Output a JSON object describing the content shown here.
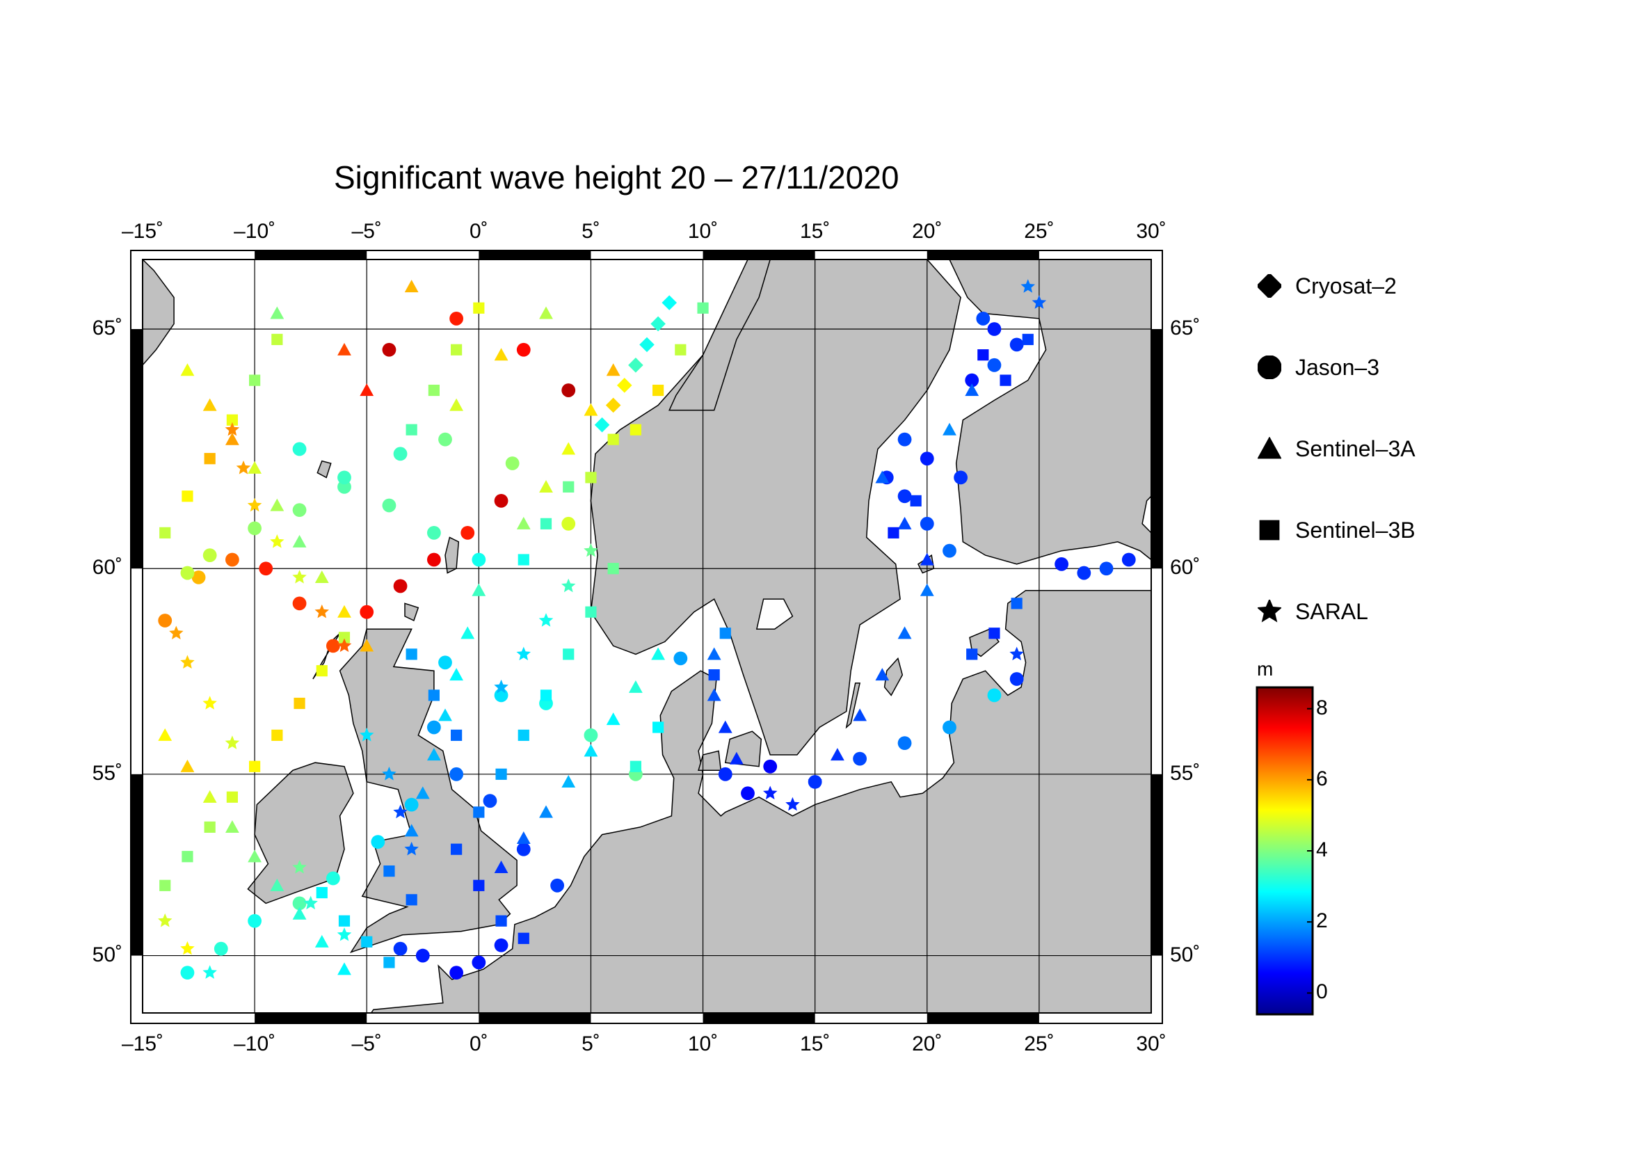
{
  "title": "Significant wave height 20 – 27/11/2020",
  "map": {
    "lon_range": [
      -15,
      30
    ],
    "lat_range": [
      48.3,
      66.3
    ],
    "lon_ticks": [
      "–15˚",
      "–10˚",
      "–5˚",
      "0˚",
      "5˚",
      "10˚",
      "15˚",
      "20˚",
      "25˚",
      "30˚"
    ],
    "lat_ticks": [
      "50˚",
      "55˚",
      "60˚",
      "65˚"
    ],
    "land_color": "#c0c0c0",
    "sea_color": "#ffffff",
    "grid": true
  },
  "legend": {
    "items": [
      {
        "label": "Cryosat–2",
        "icon": "diamond-icon"
      },
      {
        "label": "Jason–3",
        "icon": "circle-icon"
      },
      {
        "label": "Sentinel–3A",
        "icon": "triangle-icon"
      },
      {
        "label": "Sentinel–3B",
        "icon": "square-icon"
      },
      {
        "label": "SARAL",
        "icon": "star-icon"
      }
    ]
  },
  "colorbar": {
    "unit": "m",
    "min": -0.6,
    "max": 8.6,
    "ticks": [
      "0",
      "2",
      "4",
      "6",
      "8"
    ],
    "colors": [
      "#00008f",
      "#0000ff",
      "#0080ff",
      "#00ffff",
      "#80ff80",
      "#ffff00",
      "#ff8000",
      "#ff0000",
      "#800000"
    ]
  },
  "chart_data": {
    "type": "scatter",
    "title": "Significant wave height 20 – 27/11/2020",
    "x_unit": "longitude (degrees)",
    "y_unit": "latitude (degrees)",
    "value_unit": "m",
    "series": [
      {
        "name": "Cryosat–2",
        "marker": "diamond",
        "points": [
          [
            6.5,
            63.9,
            5.2
          ],
          [
            7.0,
            64.3,
            3.4
          ],
          [
            7.5,
            64.7,
            3.0
          ],
          [
            8.0,
            65.1,
            3.2
          ],
          [
            8.5,
            65.5,
            2.9
          ],
          [
            6.0,
            63.5,
            5.5
          ],
          [
            5.5,
            63.1,
            3.0
          ]
        ]
      },
      {
        "name": "Jason–3",
        "marker": "circle",
        "points": [
          [
            -14,
            58.8,
            6.2
          ],
          [
            -12.5,
            59.8,
            5.8
          ],
          [
            -11,
            60.2,
            6.5
          ],
          [
            -9.5,
            60.0,
            7.2
          ],
          [
            -8.0,
            59.2,
            7.0
          ],
          [
            -6.5,
            58.2,
            6.8
          ],
          [
            -5.0,
            59.0,
            7.3
          ],
          [
            -3.5,
            59.6,
            7.8
          ],
          [
            -2.0,
            60.2,
            7.6
          ],
          [
            -0.5,
            60.8,
            7.2
          ],
          [
            1.0,
            61.5,
            7.9
          ],
          [
            4.0,
            63.8,
            8.1
          ],
          [
            2.0,
            64.6,
            7.4
          ],
          [
            -1.0,
            65.2,
            7.2
          ],
          [
            -4.0,
            64.6,
            8.0
          ],
          [
            -13,
            59.9,
            4.6
          ],
          [
            -12,
            60.3,
            4.6
          ],
          [
            -10,
            60.9,
            4.2
          ],
          [
            -8,
            61.3,
            4.0
          ],
          [
            -6,
            61.8,
            3.6
          ],
          [
            -3.5,
            62.5,
            3.4
          ],
          [
            -1.5,
            62.8,
            3.9
          ],
          [
            1.5,
            62.3,
            4.2
          ],
          [
            4.0,
            61.0,
            4.8
          ],
          [
            -13,
            49.5,
            3.0
          ],
          [
            -11.5,
            50.2,
            3.2
          ],
          [
            -10,
            51.0,
            3.0
          ],
          [
            -8,
            51.5,
            3.6
          ],
          [
            -6.5,
            52.2,
            3.1
          ],
          [
            -4.5,
            53.2,
            2.6
          ],
          [
            -3.0,
            54.2,
            2.4
          ],
          [
            -1.0,
            55.0,
            1.5
          ],
          [
            0.5,
            54.3,
            1.2
          ],
          [
            2.0,
            53.0,
            1.0
          ],
          [
            3.5,
            52.0,
            1.1
          ],
          [
            1.0,
            50.3,
            0.8
          ],
          [
            0.0,
            49.8,
            0.7
          ],
          [
            -1.0,
            49.5,
            0.6
          ],
          [
            -2.5,
            50.0,
            0.8
          ],
          [
            -3.5,
            50.2,
            1.0
          ],
          [
            -2,
            56.2,
            2.0
          ],
          [
            -1.5,
            57.8,
            2.5
          ],
          [
            1.0,
            57.0,
            2.6
          ],
          [
            3.0,
            56.8,
            3.0
          ],
          [
            5.0,
            56.0,
            3.5
          ],
          [
            7.0,
            55.0,
            3.8
          ],
          [
            9.0,
            57.9,
            2.0
          ],
          [
            11,
            55.0,
            0.9
          ],
          [
            12.0,
            54.5,
            0.6
          ],
          [
            13,
            55.2,
            0.5
          ],
          [
            15.0,
            54.8,
            1.0
          ],
          [
            17,
            55.4,
            1.2
          ],
          [
            19,
            55.8,
            1.6
          ],
          [
            21,
            56.2,
            2.0
          ],
          [
            23,
            57.0,
            2.6
          ],
          [
            24,
            57.4,
            1.0
          ],
          [
            18.2,
            62.0,
            0.9
          ],
          [
            19,
            61.6,
            1.0
          ],
          [
            20,
            61.0,
            1.2
          ],
          [
            21,
            60.4,
            1.5
          ],
          [
            19.0,
            62.8,
            1.2
          ],
          [
            20.0,
            62.4,
            0.8
          ],
          [
            21.5,
            62.0,
            1.0
          ],
          [
            22,
            64.0,
            0.7
          ],
          [
            23,
            64.3,
            1.3
          ],
          [
            24,
            64.7,
            1.0
          ],
          [
            23,
            65.0,
            0.8
          ],
          [
            22.5,
            65.2,
            1.2
          ],
          [
            26,
            60.1,
            0.8
          ],
          [
            27,
            59.9,
            1.0
          ],
          [
            28,
            60.0,
            1.2
          ],
          [
            29,
            60.2,
            0.9
          ],
          [
            -8,
            62.6,
            3.2
          ],
          [
            -6,
            62.0,
            3.4
          ],
          [
            -4,
            61.4,
            3.7
          ],
          [
            -2,
            60.8,
            3.5
          ],
          [
            0,
            60.2,
            3.0
          ]
        ]
      },
      {
        "name": "Sentinel–3A",
        "marker": "triangle",
        "points": [
          [
            -13,
            64.2,
            5.0
          ],
          [
            -12,
            63.5,
            5.6
          ],
          [
            -11,
            62.8,
            6.0
          ],
          [
            -10,
            62.2,
            4.8
          ],
          [
            -9,
            61.4,
            4.4
          ],
          [
            -8,
            60.6,
            4.0
          ],
          [
            -7,
            59.8,
            4.6
          ],
          [
            -6,
            59.0,
            5.4
          ],
          [
            -5,
            58.2,
            5.8
          ],
          [
            -14,
            56.0,
            5.2
          ],
          [
            -13,
            55.2,
            5.6
          ],
          [
            -12,
            54.4,
            4.8
          ],
          [
            -11,
            53.6,
            4.2
          ],
          [
            -10,
            52.8,
            4.0
          ],
          [
            -9,
            52.0,
            3.5
          ],
          [
            -8,
            51.2,
            3.2
          ],
          [
            -7,
            50.4,
            3.0
          ],
          [
            -6,
            49.6,
            2.8
          ],
          [
            -3,
            53.5,
            1.8
          ],
          [
            -2.5,
            54.5,
            2.0
          ],
          [
            -2.0,
            55.5,
            2.2
          ],
          [
            -1.5,
            56.5,
            2.5
          ],
          [
            -1.0,
            57.5,
            2.8
          ],
          [
            -0.5,
            58.5,
            3.0
          ],
          [
            0.0,
            59.5,
            3.4
          ],
          [
            1.0,
            52.5,
            1.0
          ],
          [
            2.0,
            53.3,
            1.4
          ],
          [
            3.0,
            54.0,
            1.8
          ],
          [
            4.0,
            54.8,
            2.2
          ],
          [
            5.0,
            55.6,
            2.6
          ],
          [
            6.0,
            56.4,
            2.8
          ],
          [
            7.0,
            57.2,
            3.2
          ],
          [
            8.0,
            58.0,
            3.0
          ],
          [
            2,
            61.0,
            4.2
          ],
          [
            3,
            61.8,
            4.8
          ],
          [
            4,
            62.6,
            5.0
          ],
          [
            5,
            63.4,
            5.4
          ],
          [
            6,
            64.2,
            5.8
          ],
          [
            10.5,
            57.0,
            1.3
          ],
          [
            11,
            56.2,
            1.0
          ],
          [
            11.5,
            55.4,
            0.9
          ],
          [
            10.5,
            58.0,
            1.5
          ],
          [
            16,
            55.5,
            1.0
          ],
          [
            17,
            56.5,
            1.2
          ],
          [
            18,
            57.5,
            1.3
          ],
          [
            19,
            58.5,
            1.5
          ],
          [
            20,
            59.5,
            1.6
          ],
          [
            18,
            62.0,
            1.4
          ],
          [
            19,
            61.0,
            1.2
          ],
          [
            20,
            60.2,
            1.0
          ],
          [
            21,
            63.0,
            1.8
          ],
          [
            22,
            63.8,
            1.4
          ],
          [
            -1,
            63.5,
            4.8
          ],
          [
            1,
            64.5,
            5.5
          ],
          [
            3,
            65.3,
            4.5
          ],
          [
            -6,
            64.6,
            6.8
          ],
          [
            -5,
            63.8,
            7.2
          ],
          [
            -9,
            65.3,
            4.0
          ],
          [
            -3,
            65.8,
            5.8
          ]
        ]
      },
      {
        "name": "Sentinel–3B",
        "marker": "square",
        "points": [
          [
            -14,
            60.8,
            4.6
          ],
          [
            -13,
            61.6,
            5.2
          ],
          [
            -12,
            62.4,
            5.8
          ],
          [
            -11,
            63.2,
            5.0
          ],
          [
            -10,
            64.0,
            4.2
          ],
          [
            -9,
            64.8,
            4.6
          ],
          [
            -14,
            52.0,
            4.2
          ],
          [
            -13,
            52.8,
            4.0
          ],
          [
            -12,
            53.6,
            4.4
          ],
          [
            -11,
            54.4,
            4.8
          ],
          [
            -10,
            55.2,
            5.2
          ],
          [
            -9,
            56.0,
            5.4
          ],
          [
            -8,
            56.8,
            5.6
          ],
          [
            -7,
            57.6,
            5.0
          ],
          [
            -6,
            58.4,
            4.6
          ],
          [
            -1,
            53.0,
            1.2
          ],
          [
            0,
            54.0,
            1.6
          ],
          [
            1,
            55.0,
            2.0
          ],
          [
            2,
            56.0,
            2.4
          ],
          [
            3,
            57.0,
            2.8
          ],
          [
            4,
            58.0,
            3.2
          ],
          [
            5,
            59.0,
            3.4
          ],
          [
            6,
            60.0,
            3.8
          ],
          [
            2,
            60.2,
            3.0
          ],
          [
            3,
            61.0,
            3.4
          ],
          [
            4,
            61.8,
            3.8
          ],
          [
            -3,
            58.0,
            2.0
          ],
          [
            -2,
            57.0,
            1.8
          ],
          [
            -1,
            56.0,
            1.5
          ],
          [
            0,
            52.0,
            0.9
          ],
          [
            1,
            51.0,
            1.2
          ],
          [
            2,
            50.5,
            1.0
          ],
          [
            -7,
            51.8,
            2.8
          ],
          [
            -6,
            51.0,
            2.6
          ],
          [
            -5,
            50.4,
            2.4
          ],
          [
            -4,
            49.8,
            2.2
          ],
          [
            7,
            63.0,
            5.0
          ],
          [
            8,
            63.8,
            5.4
          ],
          [
            9,
            64.6,
            4.6
          ],
          [
            10,
            65.4,
            3.8
          ],
          [
            5,
            62.0,
            4.6
          ],
          [
            6,
            62.8,
            4.8
          ],
          [
            -3,
            63.0,
            3.6
          ],
          [
            -2,
            63.8,
            4.2
          ],
          [
            -1,
            64.6,
            4.6
          ],
          [
            0,
            65.4,
            5.0
          ],
          [
            10.5,
            57.5,
            1.2
          ],
          [
            11,
            58.5,
            1.8
          ],
          [
            22,
            58.0,
            1.2
          ],
          [
            23,
            58.5,
            0.9
          ],
          [
            24,
            59.2,
            1.4
          ],
          [
            22.5,
            64.5,
            0.7
          ],
          [
            23.5,
            64.0,
            0.9
          ],
          [
            24.5,
            64.8,
            1.1
          ],
          [
            18.5,
            60.8,
            0.8
          ],
          [
            19.5,
            61.5,
            1.0
          ],
          [
            8,
            56.2,
            2.8
          ],
          [
            7,
            55.2,
            3.2
          ],
          [
            -4,
            52.4,
            1.6
          ],
          [
            -3,
            51.6,
            1.4
          ]
        ]
      },
      {
        "name": "SARAL",
        "marker": "star",
        "points": [
          [
            -14,
            51.0,
            4.8
          ],
          [
            -13,
            50.2,
            5.2
          ],
          [
            -12,
            49.5,
            3.0
          ],
          [
            -11,
            63.0,
            6.2
          ],
          [
            -10.5,
            62.2,
            6.0
          ],
          [
            -10,
            61.4,
            5.6
          ],
          [
            -9,
            60.6,
            5.0
          ],
          [
            -8,
            59.8,
            4.8
          ],
          [
            -7,
            59.0,
            6.2
          ],
          [
            -6,
            58.2,
            6.6
          ],
          [
            -3,
            53.0,
            1.5
          ],
          [
            -3.5,
            54.0,
            1.2
          ],
          [
            -4,
            55.0,
            2.0
          ],
          [
            -5,
            56.0,
            2.6
          ],
          [
            1,
            57.2,
            2.2
          ],
          [
            2,
            58.0,
            2.6
          ],
          [
            3,
            58.8,
            3.0
          ],
          [
            4,
            59.6,
            3.4
          ],
          [
            5,
            60.4,
            3.8
          ],
          [
            13,
            54.5,
            0.8
          ],
          [
            14,
            54.2,
            0.9
          ],
          [
            15,
            54.8,
            1.0
          ],
          [
            24,
            58.0,
            1.1
          ],
          [
            25,
            65.5,
            1.4
          ],
          [
            24.5,
            65.8,
            1.6
          ],
          [
            -8,
            52.5,
            3.8
          ],
          [
            -7.5,
            51.5,
            3.2
          ],
          [
            -6,
            50.6,
            3.0
          ],
          [
            -13.5,
            58.5,
            6.0
          ],
          [
            -13,
            57.8,
            5.6
          ],
          [
            -12,
            56.8,
            5.2
          ],
          [
            -11,
            55.8,
            4.8
          ]
        ]
      }
    ]
  }
}
